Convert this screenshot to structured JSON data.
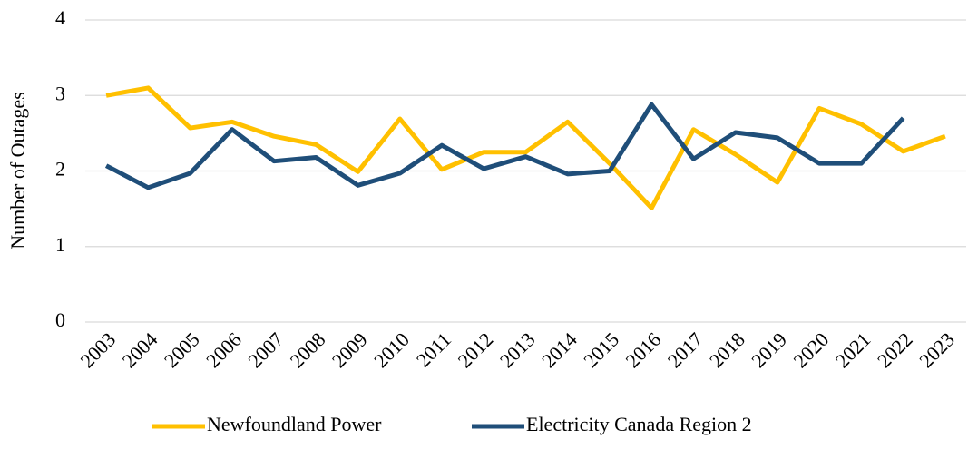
{
  "chart_data": {
    "type": "line",
    "y_label": "Number of Outages",
    "categories": [
      "2003",
      "2004",
      "2005",
      "2006",
      "2007",
      "2008",
      "2009",
      "2010",
      "2011",
      "2012",
      "2013",
      "2014",
      "2015",
      "2016",
      "2017",
      "2018",
      "2019",
      "2020",
      "2021",
      "2022",
      "2023"
    ],
    "series": [
      {
        "name": "Newfoundland Power",
        "color": "#ffc000",
        "values": [
          3.0,
          3.1,
          2.57,
          2.65,
          2.46,
          2.35,
          1.99,
          2.69,
          2.02,
          2.25,
          2.25,
          2.65,
          2.1,
          1.51,
          2.55,
          2.22,
          1.85,
          2.83,
          2.62,
          2.26,
          2.46
        ]
      },
      {
        "name": "Electricity Canada Region 2",
        "color": "#1f4e79",
        "values": [
          2.07,
          1.78,
          1.97,
          2.55,
          2.13,
          2.18,
          1.81,
          1.97,
          2.34,
          2.03,
          2.19,
          1.96,
          2.0,
          2.88,
          2.16,
          2.51,
          2.44,
          2.1,
          2.1,
          2.7,
          null
        ]
      }
    ],
    "ylim": [
      0,
      4
    ],
    "yticks": [
      0,
      1,
      2,
      3,
      4
    ],
    "grid": true,
    "legend": "bottom"
  }
}
